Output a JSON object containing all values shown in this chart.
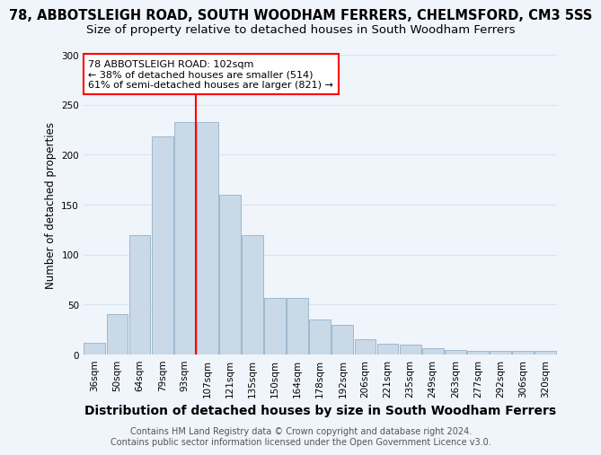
{
  "title": "78, ABBOTSLEIGH ROAD, SOUTH WOODHAM FERRERS, CHELMSFORD, CM3 5SS",
  "subtitle": "Size of property relative to detached houses in South Woodham Ferrers",
  "xlabel": "Distribution of detached houses by size in South Woodham Ferrers",
  "ylabel": "Number of detached properties",
  "categories": [
    "36sqm",
    "50sqm",
    "64sqm",
    "79sqm",
    "93sqm",
    "107sqm",
    "121sqm",
    "135sqm",
    "150sqm",
    "164sqm",
    "178sqm",
    "192sqm",
    "206sqm",
    "221sqm",
    "235sqm",
    "249sqm",
    "263sqm",
    "277sqm",
    "292sqm",
    "306sqm",
    "320sqm"
  ],
  "values": [
    12,
    41,
    120,
    218,
    233,
    233,
    160,
    120,
    57,
    57,
    35,
    30,
    15,
    11,
    10,
    6,
    5,
    4,
    4,
    4,
    4
  ],
  "bar_color": "#c9d9e8",
  "bar_edge_color": "#a0b8cc",
  "grid_color": "#d8e4f0",
  "vline_color": "red",
  "vline_x_index": 4.5,
  "annotation_line1": "78 ABBOTSLEIGH ROAD: 102sqm",
  "annotation_line2": "← 38% of detached houses are smaller (514)",
  "annotation_line3": "61% of semi-detached houses are larger (821) →",
  "annotation_box_color": "white",
  "annotation_box_edge_color": "red",
  "footer": "Contains HM Land Registry data © Crown copyright and database right 2024.\nContains public sector information licensed under the Open Government Licence v3.0.",
  "ylim": [
    0,
    300
  ],
  "title_fontsize": 10.5,
  "subtitle_fontsize": 9.5,
  "xlabel_fontsize": 10,
  "ylabel_fontsize": 8.5,
  "tick_fontsize": 7.5,
  "annotation_fontsize": 8,
  "footer_fontsize": 7,
  "background_color": "#f0f4fb"
}
